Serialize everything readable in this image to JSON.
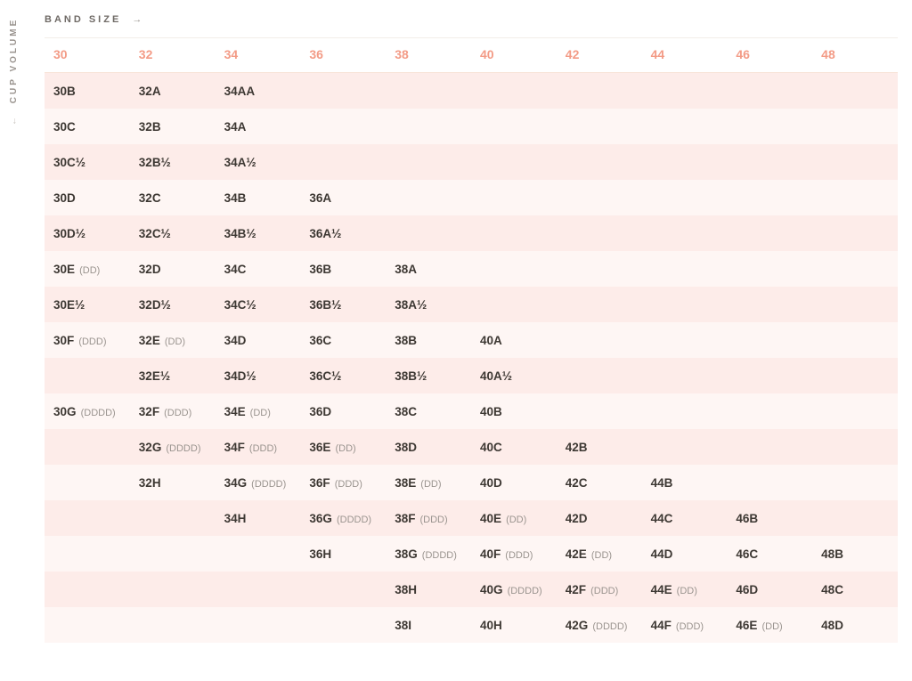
{
  "labels": {
    "band": "BAND SIZE",
    "cup": "CUP VOLUME"
  },
  "colors": {
    "header_text": "#f39b86",
    "cell_text": "#3d3833",
    "sub_text": "#9a948f",
    "row_even": "#fdece9",
    "row_odd": "#fef6f4",
    "header_underline": "#f8e3d8"
  },
  "columns": [
    "30",
    "32",
    "34",
    "36",
    "38",
    "40",
    "42",
    "44",
    "46",
    "48"
  ],
  "rows": [
    [
      {
        "m": "30B"
      },
      {
        "m": "32A"
      },
      {
        "m": "34AA"
      },
      {},
      {},
      {},
      {},
      {},
      {},
      {}
    ],
    [
      {
        "m": "30C"
      },
      {
        "m": "32B"
      },
      {
        "m": "34A"
      },
      {},
      {},
      {},
      {},
      {},
      {},
      {}
    ],
    [
      {
        "m": "30C½"
      },
      {
        "m": "32B½"
      },
      {
        "m": "34A½"
      },
      {},
      {},
      {},
      {},
      {},
      {},
      {}
    ],
    [
      {
        "m": "30D"
      },
      {
        "m": "32C"
      },
      {
        "m": "34B"
      },
      {
        "m": "36A"
      },
      {},
      {},
      {},
      {},
      {},
      {}
    ],
    [
      {
        "m": "30D½"
      },
      {
        "m": "32C½"
      },
      {
        "m": "34B½"
      },
      {
        "m": "36A½"
      },
      {},
      {},
      {},
      {},
      {},
      {}
    ],
    [
      {
        "m": "30E",
        "s": "(DD)"
      },
      {
        "m": "32D"
      },
      {
        "m": "34C"
      },
      {
        "m": "36B"
      },
      {
        "m": "38A"
      },
      {},
      {},
      {},
      {},
      {}
    ],
    [
      {
        "m": "30E½"
      },
      {
        "m": "32D½"
      },
      {
        "m": "34C½"
      },
      {
        "m": "36B½"
      },
      {
        "m": "38A½"
      },
      {},
      {},
      {},
      {},
      {}
    ],
    [
      {
        "m": "30F",
        "s": "(DDD)"
      },
      {
        "m": "32E",
        "s": "(DD)"
      },
      {
        "m": "34D"
      },
      {
        "m": "36C"
      },
      {
        "m": "38B"
      },
      {
        "m": "40A"
      },
      {},
      {},
      {},
      {}
    ],
    [
      {},
      {
        "m": "32E½"
      },
      {
        "m": "34D½"
      },
      {
        "m": "36C½"
      },
      {
        "m": "38B½"
      },
      {
        "m": "40A½"
      },
      {},
      {},
      {},
      {}
    ],
    [
      {
        "m": "30G",
        "s": "(DDDD)"
      },
      {
        "m": "32F",
        "s": "(DDD)"
      },
      {
        "m": "34E",
        "s": "(DD)"
      },
      {
        "m": "36D"
      },
      {
        "m": "38C"
      },
      {
        "m": "40B"
      },
      {},
      {},
      {},
      {}
    ],
    [
      {},
      {
        "m": "32G",
        "s": "(DDDD)"
      },
      {
        "m": "34F",
        "s": "(DDD)"
      },
      {
        "m": "36E",
        "s": "(DD)"
      },
      {
        "m": "38D"
      },
      {
        "m": "40C"
      },
      {
        "m": "42B"
      },
      {},
      {},
      {}
    ],
    [
      {},
      {
        "m": "32H"
      },
      {
        "m": "34G",
        "s": "(DDDD)"
      },
      {
        "m": "36F",
        "s": "(DDD)"
      },
      {
        "m": "38E",
        "s": "(DD)"
      },
      {
        "m": "40D"
      },
      {
        "m": "42C"
      },
      {
        "m": "44B"
      },
      {},
      {}
    ],
    [
      {},
      {},
      {
        "m": "34H"
      },
      {
        "m": "36G",
        "s": "(DDDD)"
      },
      {
        "m": "38F",
        "s": "(DDD)"
      },
      {
        "m": "40E",
        "s": "(DD)"
      },
      {
        "m": "42D"
      },
      {
        "m": "44C"
      },
      {
        "m": "46B"
      },
      {}
    ],
    [
      {},
      {},
      {},
      {
        "m": "36H"
      },
      {
        "m": "38G",
        "s": "(DDDD)"
      },
      {
        "m": "40F",
        "s": "(DDD)"
      },
      {
        "m": "42E",
        "s": "(DD)"
      },
      {
        "m": "44D"
      },
      {
        "m": "46C"
      },
      {
        "m": "48B"
      }
    ],
    [
      {},
      {},
      {},
      {},
      {
        "m": "38H"
      },
      {
        "m": "40G",
        "s": "(DDDD)"
      },
      {
        "m": "42F",
        "s": "(DDD)"
      },
      {
        "m": "44E",
        "s": "(DD)"
      },
      {
        "m": "46D"
      },
      {
        "m": "48C"
      }
    ],
    [
      {},
      {},
      {},
      {},
      {
        "m": "38I"
      },
      {
        "m": "40H"
      },
      {
        "m": "42G",
        "s": "(DDDD)"
      },
      {
        "m": "44F",
        "s": "(DDD)"
      },
      {
        "m": "46E",
        "s": "(DD)"
      },
      {
        "m": "48D"
      }
    ]
  ]
}
